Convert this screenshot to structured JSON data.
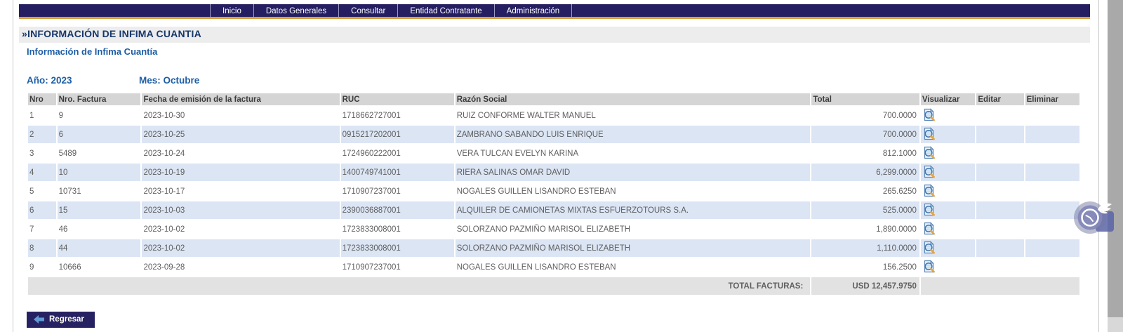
{
  "nav": {
    "items": [
      "Inicio",
      "Datos Generales",
      "Consultar",
      "Entidad Contratante",
      "Administración"
    ]
  },
  "page": {
    "title": "»INFORMACIÓN DE INFIMA CUANTIA",
    "subtitle": "Información de Infima Cuantía",
    "year_label": "Año: 2023",
    "month_label": "Mes: Octubre"
  },
  "table": {
    "columns": [
      "Nro",
      "Nro. Factura",
      "Fecha de emisión de la factura",
      "RUC",
      "Razón Social",
      "Total",
      "Visualizar",
      "Editar",
      "Eliminar"
    ],
    "rows": [
      {
        "nro": "1",
        "factura": "9",
        "fecha": "2023-10-30",
        "ruc": "1718662727001",
        "razon_social": "RUIZ CONFORME WALTER MANUEL",
        "total": "700.0000"
      },
      {
        "nro": "2",
        "factura": "6",
        "fecha": "2023-10-25",
        "ruc": "0915217202001",
        "razon_social": "ZAMBRANO SABANDO LUIS ENRIQUE",
        "total": "700.0000"
      },
      {
        "nro": "3",
        "factura": "5489",
        "fecha": "2023-10-24",
        "ruc": "1724960222001",
        "razon_social": "VERA TULCAN EVELYN KARINA",
        "total": "812.1000"
      },
      {
        "nro": "4",
        "factura": "10",
        "fecha": "2023-10-19",
        "ruc": "1400749741001",
        "razon_social": "RIERA SALINAS OMAR DAVID",
        "total": "6,299.0000"
      },
      {
        "nro": "5",
        "factura": "10731",
        "fecha": "2023-10-17",
        "ruc": "1710907237001",
        "razon_social": "NOGALES GUILLEN LISANDRO ESTEBAN",
        "total": "265.6250"
      },
      {
        "nro": "6",
        "factura": "15",
        "fecha": "2023-10-03",
        "ruc": "2390036887001",
        "razon_social": "ALQUILER DE CAMIONETAS MIXTAS ESFUERZOTOURS S.A.",
        "total": "525.0000"
      },
      {
        "nro": "7",
        "factura": "46",
        "fecha": "2023-10-02",
        "ruc": "1723833008001",
        "razon_social": "SOLORZANO PAZMIÑO MARISOL ELIZABETH",
        "total": "1,890.0000"
      },
      {
        "nro": "8",
        "factura": "44",
        "fecha": "2023-10-02",
        "ruc": "1723833008001",
        "razon_social": "SOLORZANO PAZMIÑO MARISOL ELIZABETH",
        "total": "1,110.0000"
      },
      {
        "nro": "9",
        "factura": "10666",
        "fecha": "2023-09-28",
        "ruc": "1710907237001",
        "razon_social": "NOGALES GUILLEN LISANDRO ESTEBAN",
        "total": "156.2500"
      }
    ],
    "footer": {
      "label": "TOTAL FACTURAS:",
      "total": "USD 12,457.9750"
    }
  },
  "actions": {
    "back_label": "Regresar"
  },
  "icons": {
    "visualizar": "document-magnifier-icon",
    "back_arrow": "left-arrow-icon",
    "overlay": "winged-clock-icon"
  },
  "colors": {
    "nav_bg": "#251f61",
    "nav_underline": "#d9a23a",
    "title_navy": "#17376b",
    "accent_blue": "#1d5ea5",
    "row_alt": "#dbe5f4",
    "header_bg": "#d5d5d5",
    "footer_bg": "#e2e2e2"
  }
}
